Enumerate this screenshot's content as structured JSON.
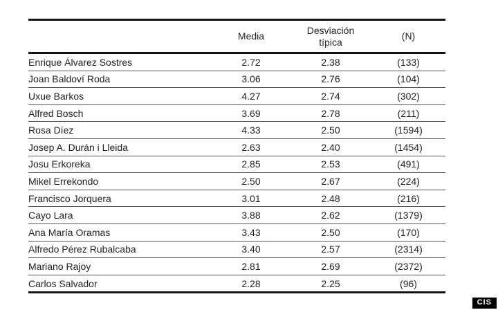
{
  "chart_data": {
    "type": "table",
    "title": "",
    "columns": [
      "",
      "Media",
      "Desviación típica",
      "(N)"
    ],
    "rows": [
      {
        "name": "Enrique Álvarez Sostres",
        "media": "2.72",
        "desviacion": "2.38",
        "n": "(133)"
      },
      {
        "name": "Joan Baldoví Roda",
        "media": "3.06",
        "desviacion": "2.76",
        "n": "(104)"
      },
      {
        "name": "Uxue Barkos",
        "media": "4.27",
        "desviacion": "2.74",
        "n": "(302)"
      },
      {
        "name": "Alfred Bosch",
        "media": "3.69",
        "desviacion": "2.78",
        "n": "(211)"
      },
      {
        "name": "Rosa Díez",
        "media": "4.33",
        "desviacion": "2.50",
        "n": "(1594)"
      },
      {
        "name": "Josep A. Durán i Lleida",
        "media": "2.63",
        "desviacion": "2.40",
        "n": "(1454)"
      },
      {
        "name": "Josu Erkoreka",
        "media": "2.85",
        "desviacion": "2.53",
        "n": "(491)"
      },
      {
        "name": "Mikel Errekondo",
        "media": "2.50",
        "desviacion": "2.67",
        "n": "(224)"
      },
      {
        "name": "Francisco Jorquera",
        "media": "3.01",
        "desviacion": "2.48",
        "n": "(216)"
      },
      {
        "name": "Cayo Lara",
        "media": "3.88",
        "desviacion": "2.62",
        "n": "(1379)"
      },
      {
        "name": "Ana María Oramas",
        "media": "3.43",
        "desviacion": "2.50",
        "n": "(170)"
      },
      {
        "name": "Alfredo Pérez Rubalcaba",
        "media": "3.40",
        "desviacion": "2.57",
        "n": "(2314)"
      },
      {
        "name": "Mariano Rajoy",
        "media": "2.81",
        "desviacion": "2.69",
        "n": "(2372)"
      },
      {
        "name": "Carlos Salvador",
        "media": "2.28",
        "desviacion": "2.25",
        "n": "(96)"
      }
    ],
    "layout": {
      "grid": "horizontal-rules-only",
      "header_border": "heavy",
      "outer_border": "heavy-top-bottom"
    }
  },
  "header": {
    "media": "Media",
    "desviacion_line1": "Desviación",
    "desviacion_line2": "típica",
    "n": "(N)"
  },
  "badge": {
    "label": "CIS"
  },
  "colors": {
    "text": "#222222",
    "heavy_rule": "#121212",
    "light_rule": "#4f4f4f",
    "badge_bg": "#000000",
    "badge_fg": "#ffffff",
    "background": "#ffffff"
  }
}
